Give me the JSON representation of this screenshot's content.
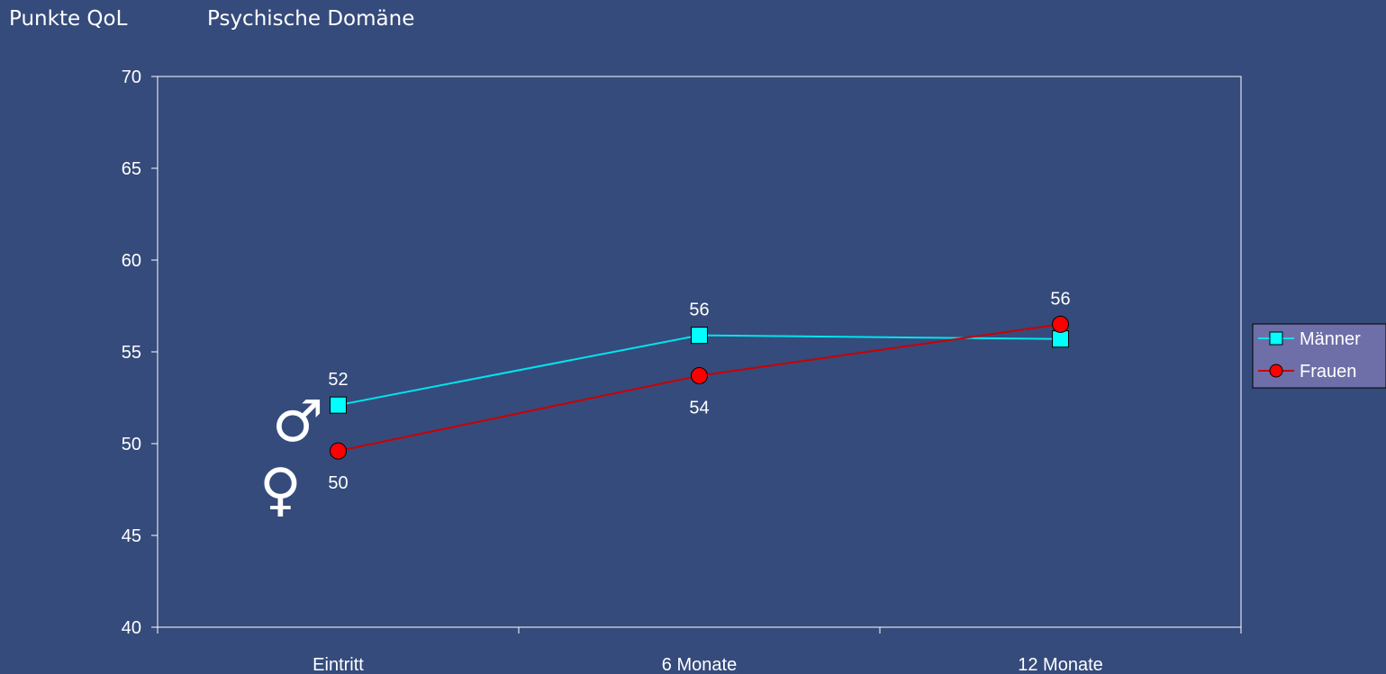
{
  "header": {
    "ylabel": "Punkte QoL",
    "title": "Psychische Domäne"
  },
  "colors": {
    "background": "#354B7C",
    "axis": "#FFFFFF",
    "legend_bg": "#6E6FA8"
  },
  "chart_data": {
    "type": "line",
    "title": "Psychische Domäne",
    "ylabel": "Punkte QoL",
    "xlabel": "",
    "categories": [
      "Eintritt",
      "6 Monate",
      "12 Monate"
    ],
    "ylim": [
      40,
      70
    ],
    "yticks": [
      40,
      45,
      50,
      55,
      60,
      65,
      70
    ],
    "grid": false,
    "legend_position": "right",
    "series": [
      {
        "name": "Männer",
        "values": [
          52.1,
          55.9,
          55.7
        ],
        "labels": [
          "52",
          "56",
          ""
        ],
        "label_position": "above",
        "color": "#00E5EE",
        "marker_fill": "#00FFFF",
        "line_color": "#00E5EE",
        "marker": "square",
        "symbol": "♂",
        "symbol_color": "#33CCCC"
      },
      {
        "name": "Frauen",
        "values": [
          49.6,
          53.7,
          56.5
        ],
        "labels": [
          "50",
          "54",
          "56"
        ],
        "label_position": [
          "below",
          "below",
          "above"
        ],
        "color": "#CC0000",
        "marker_fill": "#FF0000",
        "line_color": "#CC0000",
        "marker": "circle",
        "symbol": "♀",
        "symbol_color": "#CC3380"
      }
    ]
  }
}
